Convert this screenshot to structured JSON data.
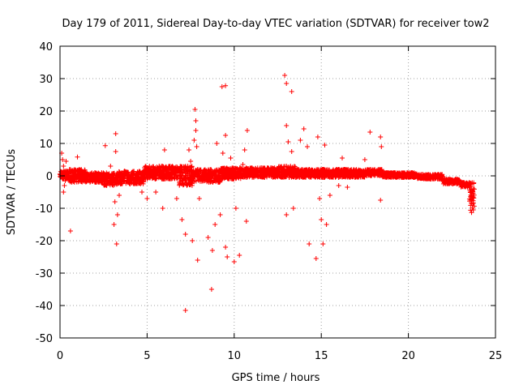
{
  "chart_data": {
    "type": "scatter",
    "title": "Day 179 of 2011, Sidereal Day-to-day VTEC variation (SDTVAR) for receiver tow2",
    "xlabel": "GPS time / hours",
    "ylabel": "SDTVAR / TECUs",
    "xlim": [
      0,
      25
    ],
    "ylim": [
      -50,
      40
    ],
    "xticks": [
      "0",
      "5",
      "10",
      "15",
      "20",
      "25"
    ],
    "yticks": [
      "40",
      "30",
      "20",
      "10",
      "0",
      "-10",
      "-20",
      "-30",
      "-40",
      "-50"
    ],
    "grid": true,
    "marker": "+",
    "color": "#ff0000",
    "series": [
      {
        "name": "tow2",
        "dense_band": [
          [
            0.0,
            0.5,
            -1.0,
            1.5
          ],
          [
            0.5,
            1.5,
            -2.0,
            2.0
          ],
          [
            1.5,
            2.5,
            -2.0,
            1.0
          ],
          [
            2.5,
            3.3,
            -3.0,
            1.0
          ],
          [
            3.3,
            4.8,
            -2.5,
            1.5
          ],
          [
            4.8,
            6.8,
            -1.0,
            3.0
          ],
          [
            6.8,
            7.6,
            -3.0,
            3.0
          ],
          [
            7.6,
            9.2,
            -2.0,
            2.0
          ],
          [
            9.2,
            10.5,
            -1.0,
            2.5
          ],
          [
            10.5,
            12.5,
            -0.5,
            2.5
          ],
          [
            12.5,
            13.5,
            -0.5,
            3.0
          ],
          [
            13.5,
            15.0,
            -0.5,
            2.0
          ],
          [
            15.0,
            17.5,
            -0.5,
            2.0
          ],
          [
            17.5,
            18.5,
            0.0,
            2.0
          ],
          [
            18.5,
            20.5,
            -0.5,
            1.0
          ],
          [
            20.5,
            22.0,
            -1.0,
            0.5
          ],
          [
            22.0,
            23.0,
            -2.5,
            -1.0
          ],
          [
            23.0,
            23.5,
            -3.5,
            -2.0
          ],
          [
            23.5,
            23.8,
            -11.5,
            -2.0
          ]
        ],
        "points": [
          [
            0.1,
            7.0
          ],
          [
            0.15,
            5.0
          ],
          [
            0.2,
            3.0
          ],
          [
            0.2,
            -5.0
          ],
          [
            0.25,
            -3.0
          ],
          [
            0.3,
            -1.5
          ],
          [
            0.35,
            4.5
          ],
          [
            0.6,
            -17.0
          ],
          [
            1.0,
            5.8
          ],
          [
            2.6,
            9.3
          ],
          [
            2.9,
            3.0
          ],
          [
            3.1,
            -15.0
          ],
          [
            3.15,
            -8.0
          ],
          [
            3.2,
            13.0
          ],
          [
            3.2,
            7.5
          ],
          [
            3.25,
            -21.0
          ],
          [
            3.3,
            -12.0
          ],
          [
            3.4,
            -6.0
          ],
          [
            4.7,
            -5.0
          ],
          [
            5.0,
            -7.0
          ],
          [
            5.5,
            -5.0
          ],
          [
            5.9,
            -10.0
          ],
          [
            6.0,
            8.0
          ],
          [
            6.7,
            -7.0
          ],
          [
            7.0,
            -13.5
          ],
          [
            7.2,
            -41.5
          ],
          [
            7.2,
            -18.0
          ],
          [
            7.4,
            8.0
          ],
          [
            7.5,
            4.5
          ],
          [
            7.6,
            -20.0
          ],
          [
            7.7,
            11.0
          ],
          [
            7.75,
            20.5
          ],
          [
            7.8,
            17.0
          ],
          [
            7.8,
            14.0
          ],
          [
            7.85,
            9.0
          ],
          [
            7.9,
            -26.0
          ],
          [
            8.0,
            -7.0
          ],
          [
            8.5,
            -19.0
          ],
          [
            8.7,
            -35.0
          ],
          [
            8.75,
            -23.0
          ],
          [
            8.9,
            -15.0
          ],
          [
            9.0,
            10.0
          ],
          [
            9.2,
            -12.0
          ],
          [
            9.3,
            27.5
          ],
          [
            9.35,
            7.0
          ],
          [
            9.5,
            27.8
          ],
          [
            9.5,
            12.5
          ],
          [
            9.5,
            -22.0
          ],
          [
            9.6,
            -25.0
          ],
          [
            9.8,
            5.5
          ],
          [
            10.0,
            -26.5
          ],
          [
            10.1,
            -10.0
          ],
          [
            10.3,
            -24.5
          ],
          [
            10.5,
            3.5
          ],
          [
            10.6,
            8.0
          ],
          [
            10.75,
            14.0
          ],
          [
            10.7,
            -14.0
          ],
          [
            12.9,
            31.0
          ],
          [
            13.0,
            28.5
          ],
          [
            13.0,
            15.5
          ],
          [
            13.0,
            -12.0
          ],
          [
            13.1,
            10.5
          ],
          [
            13.3,
            26.0
          ],
          [
            13.3,
            7.5
          ],
          [
            13.4,
            -10.0
          ],
          [
            13.8,
            11.0
          ],
          [
            14.0,
            14.5
          ],
          [
            14.2,
            9.0
          ],
          [
            14.3,
            -21.0
          ],
          [
            14.7,
            -25.5
          ],
          [
            14.8,
            12.0
          ],
          [
            14.9,
            -7.0
          ],
          [
            15.0,
            -13.5
          ],
          [
            15.1,
            -21.0
          ],
          [
            15.2,
            9.5
          ],
          [
            15.3,
            -15.0
          ],
          [
            15.5,
            -6.0
          ],
          [
            16.0,
            -3.0
          ],
          [
            16.2,
            5.5
          ],
          [
            16.5,
            -3.5
          ],
          [
            17.5,
            5.0
          ],
          [
            17.8,
            13.5
          ],
          [
            18.4,
            12.0
          ],
          [
            18.45,
            9.0
          ],
          [
            18.4,
            -7.5
          ]
        ]
      }
    ]
  }
}
